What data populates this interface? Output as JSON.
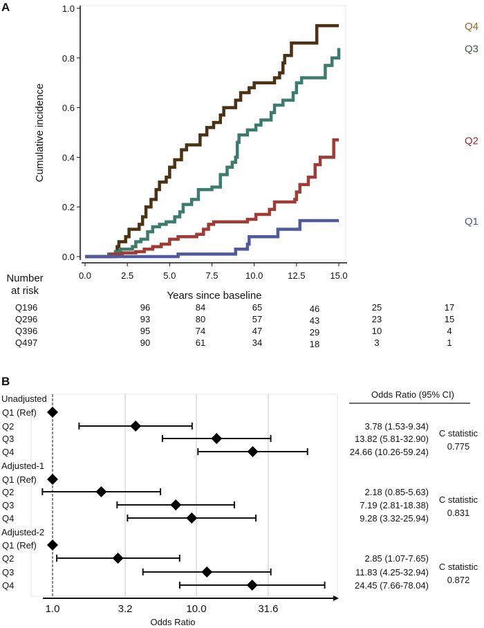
{
  "chart_data": [
    {
      "panel": "A",
      "type": "line",
      "step": true,
      "xlabel": "Years since baseline",
      "ylabel": "Cumulative incidence",
      "xlim": [
        0,
        15
      ],
      "ylim": [
        0,
        1
      ],
      "xticks": [
        "0.0",
        "2.5",
        "5.0",
        "7.5",
        "10.0",
        "12.5",
        "15.0"
      ],
      "yticks": [
        "0.0",
        "0.2",
        "0.4",
        "0.6",
        "0.8",
        "1.0"
      ],
      "series": [
        {
          "name": "Q4",
          "color": "#4b3212",
          "label_color": "#8a6a22",
          "steps": [
            [
              1.8,
              0.02
            ],
            [
              1.9,
              0.04
            ],
            [
              2.0,
              0.06
            ],
            [
              2.4,
              0.08
            ],
            [
              2.6,
              0.11
            ],
            [
              3.2,
              0.13
            ],
            [
              3.4,
              0.16
            ],
            [
              3.6,
              0.2
            ],
            [
              3.9,
              0.23
            ],
            [
              4.2,
              0.27
            ],
            [
              4.4,
              0.3
            ],
            [
              4.8,
              0.32
            ],
            [
              5.0,
              0.36
            ],
            [
              5.3,
              0.39
            ],
            [
              5.7,
              0.43
            ],
            [
              6.0,
              0.45
            ],
            [
              6.8,
              0.49
            ],
            [
              7.2,
              0.52
            ],
            [
              7.6,
              0.54
            ],
            [
              8.0,
              0.57
            ],
            [
              8.2,
              0.6
            ],
            [
              8.9,
              0.63
            ],
            [
              9.2,
              0.66
            ],
            [
              9.7,
              0.68
            ],
            [
              10.0,
              0.7
            ],
            [
              11.2,
              0.72
            ],
            [
              11.5,
              0.74
            ],
            [
              11.7,
              0.78
            ],
            [
              11.8,
              0.81
            ],
            [
              12.2,
              0.86
            ],
            [
              13.7,
              0.93
            ]
          ]
        },
        {
          "name": "Q3",
          "color": "#3d7b6c",
          "label_color": "#3d5a40",
          "steps": [
            [
              1.4,
              0.01
            ],
            [
              1.8,
              0.02
            ],
            [
              2.1,
              0.03
            ],
            [
              2.8,
              0.04
            ],
            [
              3.0,
              0.06
            ],
            [
              3.3,
              0.07
            ],
            [
              3.7,
              0.1
            ],
            [
              4.0,
              0.12
            ],
            [
              4.4,
              0.13
            ],
            [
              4.8,
              0.14
            ],
            [
              5.3,
              0.16
            ],
            [
              5.6,
              0.18
            ],
            [
              5.8,
              0.21
            ],
            [
              6.3,
              0.23
            ],
            [
              6.7,
              0.27
            ],
            [
              7.5,
              0.28
            ],
            [
              8.0,
              0.33
            ],
            [
              8.4,
              0.36
            ],
            [
              8.7,
              0.38
            ],
            [
              8.9,
              0.4
            ],
            [
              9.0,
              0.46
            ],
            [
              9.1,
              0.49
            ],
            [
              9.6,
              0.51
            ],
            [
              10.1,
              0.53
            ],
            [
              10.4,
              0.55
            ],
            [
              11.0,
              0.58
            ],
            [
              11.2,
              0.61
            ],
            [
              11.7,
              0.63
            ],
            [
              12.3,
              0.66
            ],
            [
              12.5,
              0.7
            ],
            [
              12.8,
              0.72
            ],
            [
              14.2,
              0.77
            ],
            [
              14.6,
              0.8
            ],
            [
              15.0,
              0.84
            ]
          ]
        },
        {
          "name": "Q2",
          "color": "#a13b35",
          "label_color": "#a0282a",
          "steps": [
            [
              1.5,
              0.01
            ],
            [
              2.2,
              0.015
            ],
            [
              3.0,
              0.02
            ],
            [
              3.5,
              0.03
            ],
            [
              4.0,
              0.04
            ],
            [
              4.5,
              0.05
            ],
            [
              5.0,
              0.07
            ],
            [
              5.5,
              0.08
            ],
            [
              6.6,
              0.09
            ],
            [
              7.0,
              0.11
            ],
            [
              7.3,
              0.13
            ],
            [
              7.6,
              0.14
            ],
            [
              9.6,
              0.15
            ],
            [
              10.1,
              0.17
            ],
            [
              10.9,
              0.19
            ],
            [
              11.2,
              0.22
            ],
            [
              12.4,
              0.23
            ],
            [
              12.5,
              0.26
            ],
            [
              12.7,
              0.29
            ],
            [
              13.2,
              0.32
            ],
            [
              13.6,
              0.37
            ],
            [
              13.9,
              0.4
            ],
            [
              14.7,
              0.47
            ]
          ]
        },
        {
          "name": "Q1",
          "color": "#4f5b9c",
          "label_color": "#4a5a9a",
          "steps": [
            [
              5.5,
              0.01
            ],
            [
              8.9,
              0.03
            ],
            [
              9.6,
              0.05
            ],
            [
              9.7,
              0.08
            ],
            [
              11.4,
              0.11
            ],
            [
              12.7,
              0.145
            ]
          ]
        }
      ],
      "risk_table": {
        "title_line1": "Number",
        "title_line2": "at risk",
        "rows": [
          {
            "label": "Q1",
            "values": [
              "96",
              "96",
              "84",
              "65",
              "46",
              "25",
              "17"
            ]
          },
          {
            "label": "Q2",
            "values": [
              "96",
              "93",
              "80",
              "57",
              "43",
              "23",
              "15"
            ]
          },
          {
            "label": "Q3",
            "values": [
              "96",
              "95",
              "74",
              "47",
              "29",
              "10",
              "4"
            ]
          },
          {
            "label": "Q4",
            "values": [
              "97",
              "90",
              "61",
              "34",
              "18",
              "3",
              "1"
            ]
          }
        ]
      }
    },
    {
      "panel": "B",
      "type": "forest",
      "xlabel": "Odds Ratio",
      "xscale": "log",
      "xticks": [
        "1.0",
        "3.2",
        "10.0",
        "31.6"
      ],
      "reference_line": 1.0,
      "table_header": "Odds Ratio (95% CI)",
      "groups": [
        {
          "name": "Unadjusted",
          "c_label": "C statistic",
          "c_value": "0.775",
          "rows": [
            {
              "label": "Q1 (Ref)",
              "or": 1,
              "lo": null,
              "hi": null,
              "text": ""
            },
            {
              "label": "Q2",
              "or": 3.78,
              "lo": 1.53,
              "hi": 9.34,
              "text": "3.78 (1.53-9.34)"
            },
            {
              "label": "Q3",
              "or": 13.82,
              "lo": 5.81,
              "hi": 32.9,
              "text": "13.82 (5.81-32.90)"
            },
            {
              "label": "Q4",
              "or": 24.66,
              "lo": 10.26,
              "hi": 59.24,
              "text": "24.66 (10.26-59.24)"
            }
          ]
        },
        {
          "name": "Adjusted-1",
          "c_label": "C statistic",
          "c_value": "0.831",
          "rows": [
            {
              "label": "Q1 (Ref)",
              "or": 1,
              "lo": null,
              "hi": null,
              "text": ""
            },
            {
              "label": "Q2",
              "or": 2.18,
              "lo": 0.85,
              "hi": 5.63,
              "text": "2.18 (0.85-5.63)"
            },
            {
              "label": "Q3",
              "or": 7.19,
              "lo": 2.81,
              "hi": 18.38,
              "text": "7.19 (2.81-18.38)"
            },
            {
              "label": "Q4",
              "or": 9.28,
              "lo": 3.32,
              "hi": 25.94,
              "text": "9.28 (3.32-25.94)"
            }
          ]
        },
        {
          "name": "Adjusted-2",
          "c_label": "C statistic",
          "c_value": "0.872",
          "rows": [
            {
              "label": "Q1 (Ref)",
              "or": 1,
              "lo": null,
              "hi": null,
              "text": ""
            },
            {
              "label": "Q2",
              "or": 2.85,
              "lo": 1.07,
              "hi": 7.65,
              "text": "2.85 (1.07-7.65)"
            },
            {
              "label": "Q3",
              "or": 11.83,
              "lo": 4.25,
              "hi": 32.94,
              "text": "11.83 (4.25-32.94)"
            },
            {
              "label": "Q4",
              "or": 24.45,
              "lo": 7.66,
              "hi": 78.04,
              "text": "24.45 (7.66-78.04)"
            }
          ]
        }
      ]
    }
  ]
}
